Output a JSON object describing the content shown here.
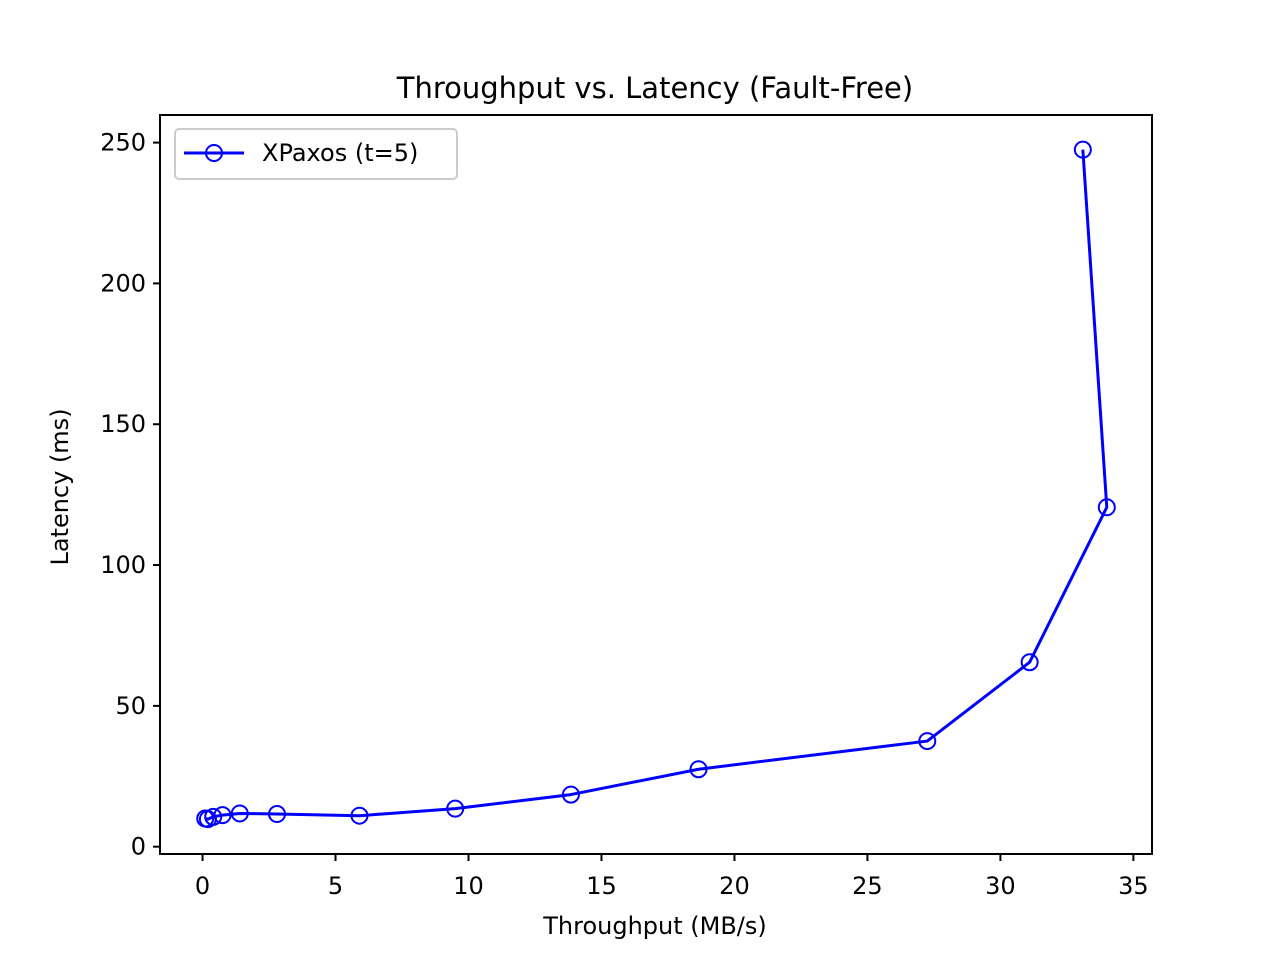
{
  "chart_data": {
    "type": "line",
    "title": "Throughput vs. Latency (Fault-Free)",
    "xlabel": "Throughput (MB/s)",
    "ylabel": "Latency (ms)",
    "xlim": [
      -1.6,
      35.7
    ],
    "ylim": [
      -2.6,
      259.8
    ],
    "xticks": [
      0,
      5,
      10,
      15,
      20,
      25,
      30,
      35
    ],
    "yticks": [
      0,
      50,
      100,
      150,
      200,
      250
    ],
    "grid": false,
    "legend_position": "upper-left",
    "series": [
      {
        "name": "XPaxos (t=5)",
        "color": "#0000ff",
        "marker": "open-circle",
        "points": [
          {
            "x": 0.1,
            "y": 10
          },
          {
            "x": 0.2,
            "y": 9.8
          },
          {
            "x": 0.4,
            "y": 10.6
          },
          {
            "x": 0.75,
            "y": 11.2
          },
          {
            "x": 1.4,
            "y": 11.8
          },
          {
            "x": 2.8,
            "y": 11.6
          },
          {
            "x": 5.9,
            "y": 11
          },
          {
            "x": 9.5,
            "y": 13.5
          },
          {
            "x": 13.85,
            "y": 18.5
          },
          {
            "x": 18.65,
            "y": 27.5
          },
          {
            "x": 27.25,
            "y": 37.5
          },
          {
            "x": 31.1,
            "y": 65.5
          },
          {
            "x": 34,
            "y": 120.5
          },
          {
            "x": 33.1,
            "y": 247.5
          }
        ]
      }
    ]
  }
}
